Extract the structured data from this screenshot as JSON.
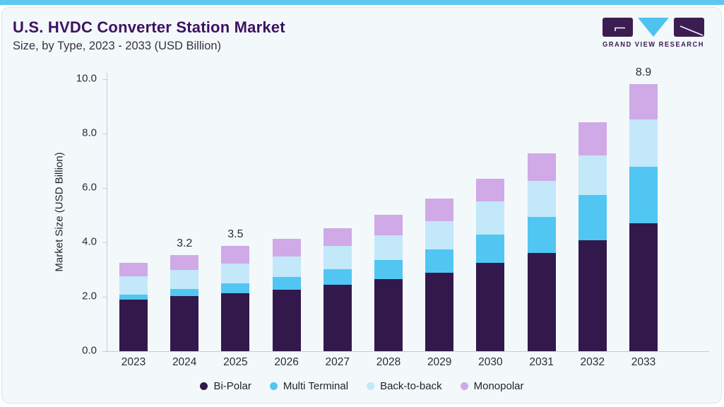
{
  "header": {
    "title": "U.S. HVDC Converter Station Market",
    "subtitle": "Size, by Type, 2023 - 2033 (USD Billion)",
    "logo_text": "GRAND VIEW RESEARCH"
  },
  "colors": {
    "accent_strip": "#5ac8f1",
    "title_purple": "#3e1161",
    "logo_purple": "#3b1d52",
    "logo_triangle": "#4fc3f0",
    "card_background": "#f3f8fb",
    "axis_line": "#c5ccd6"
  },
  "chart_data": {
    "type": "bar",
    "stacked": true,
    "title": "U.S. HVDC Converter Station Market Size, by Type, 2023 - 2033 (USD Billion)",
    "xlabel": "",
    "ylabel": "Market Size (USD Billion)",
    "ylim": [
      0,
      10
    ],
    "grid": false,
    "legend_position": "bottom",
    "yticks": [
      0,
      2,
      4,
      6,
      8,
      10
    ],
    "ytick_labels": [
      "0.0",
      "2.0",
      "4.0",
      "6.0",
      "8.0",
      "10.0"
    ],
    "categories": [
      "2023",
      "2024",
      "2025",
      "2026",
      "2027",
      "2028",
      "2029",
      "2030",
      "2031",
      "2032",
      "2033"
    ],
    "series": [
      {
        "name": "Bi-Polar",
        "color": "#33194b",
        "values": [
          1.71,
          1.84,
          1.93,
          2.05,
          2.22,
          2.4,
          2.62,
          2.94,
          3.26,
          3.69,
          4.26
        ]
      },
      {
        "name": "Multi Terminal",
        "color": "#51c6f2",
        "values": [
          0.18,
          0.24,
          0.33,
          0.42,
          0.5,
          0.63,
          0.76,
          0.94,
          1.22,
          1.51,
          1.88
        ]
      },
      {
        "name": "Back-to-back",
        "color": "#c2e8fa",
        "values": [
          0.61,
          0.62,
          0.65,
          0.69,
          0.79,
          0.84,
          0.96,
          1.11,
          1.19,
          1.31,
          1.57
        ]
      },
      {
        "name": "Monopolar",
        "color": "#d0a9e7",
        "values": [
          0.45,
          0.5,
          0.59,
          0.59,
          0.59,
          0.66,
          0.74,
          0.76,
          0.91,
          1.11,
          1.19
        ]
      }
    ],
    "totals": [
      2.95,
      3.2,
      3.5,
      3.75,
      4.1,
      4.53,
      5.08,
      5.75,
      6.58,
      7.62,
      8.9
    ],
    "total_labels": {
      "2024": "3.2",
      "2025": "3.5",
      "2033": "8.9"
    }
  }
}
